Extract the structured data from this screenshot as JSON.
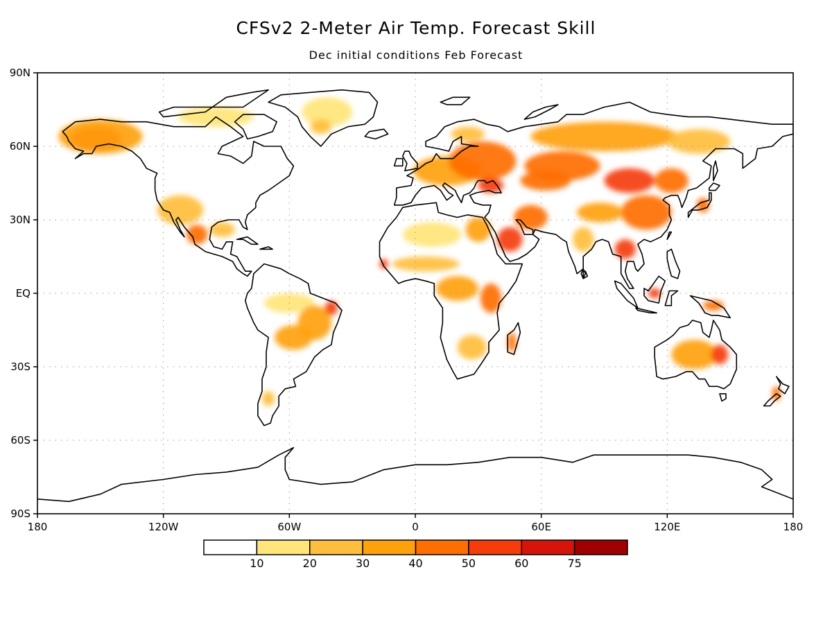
{
  "title": "CFSv2 2-Meter Air Temp. Forecast Skill",
  "subtitle": "Dec initial conditions  Feb Forecast",
  "chart_data": {
    "type": "heatmap",
    "projection": "cylindrical equidistant",
    "lon_range": [
      -180,
      180
    ],
    "lat_range": [
      -90,
      90
    ],
    "grid": true,
    "x_ticks": [
      {
        "lon": -180,
        "label": "180"
      },
      {
        "lon": -120,
        "label": "120W"
      },
      {
        "lon": -60,
        "label": "60W"
      },
      {
        "lon": 0,
        "label": "0"
      },
      {
        "lon": 60,
        "label": "60E"
      },
      {
        "lon": 120,
        "label": "120E"
      },
      {
        "lon": 180,
        "label": "180"
      }
    ],
    "y_ticks": [
      {
        "lat": 90,
        "label": "90N"
      },
      {
        "lat": 60,
        "label": "60N"
      },
      {
        "lat": 30,
        "label": "30N"
      },
      {
        "lat": 0,
        "label": "EQ"
      },
      {
        "lat": -30,
        "label": "30S"
      },
      {
        "lat": -60,
        "label": "60S"
      },
      {
        "lat": -90,
        "label": "90S"
      }
    ],
    "colorbar": {
      "placement": "bottom",
      "bins": [
        {
          "color": "#ffffff",
          "lower": null,
          "upper": 10
        },
        {
          "color": "#ffe57a",
          "lower": 10,
          "upper": 20
        },
        {
          "color": "#ffbe3c",
          "lower": 20,
          "upper": 30
        },
        {
          "color": "#ffa10a",
          "lower": 30,
          "upper": 40
        },
        {
          "color": "#ff6e00",
          "lower": 40,
          "upper": 50
        },
        {
          "color": "#f53c0a",
          "lower": 50,
          "upper": 60
        },
        {
          "color": "#d7140a",
          "lower": 60,
          "upper": 75
        },
        {
          "color": "#a00000",
          "lower": 75,
          "upper": null
        }
      ],
      "labels": [
        "10",
        "20",
        "30",
        "40",
        "50",
        "60",
        "75"
      ]
    },
    "skill_regions": [
      {
        "name": "Alaska",
        "lon": -152,
        "lat": 63,
        "rx": 12,
        "ry": 5,
        "value": 55
      },
      {
        "name": "Alaska outer",
        "lon": -150,
        "lat": 64,
        "rx": 20,
        "ry": 7,
        "value": 35
      },
      {
        "name": "Arctic Canada",
        "lon": -95,
        "lat": 72,
        "rx": 18,
        "ry": 4,
        "value": 15
      },
      {
        "name": "Greenland",
        "lon": -42,
        "lat": 74,
        "rx": 12,
        "ry": 6,
        "value": 15
      },
      {
        "name": "Greenland south",
        "lon": -45,
        "lat": 68,
        "rx": 5,
        "ry": 3,
        "value": 25
      },
      {
        "name": "Southwest US",
        "lon": -112,
        "lat": 34,
        "rx": 11,
        "ry": 6,
        "value": 25
      },
      {
        "name": "Mexico",
        "lon": -104,
        "lat": 24,
        "rx": 5,
        "ry": 4,
        "value": 45
      },
      {
        "name": "Gulf of Mexico",
        "lon": -92,
        "lat": 26,
        "rx": 6,
        "ry": 3,
        "value": 25
      },
      {
        "name": "Amazon",
        "lon": -60,
        "lat": -4,
        "rx": 12,
        "ry": 4,
        "value": 15
      },
      {
        "name": "Brazil",
        "lon": -48,
        "lat": -12,
        "rx": 8,
        "ry": 7,
        "value": 30
      },
      {
        "name": "Central South America",
        "lon": -58,
        "lat": -18,
        "rx": 9,
        "ry": 5,
        "value": 30
      },
      {
        "name": "Northeast Brazil",
        "lon": -40,
        "lat": -6,
        "rx": 3,
        "ry": 3,
        "value": 50
      },
      {
        "name": "Patagonia",
        "lon": -70,
        "lat": -43,
        "rx": 3,
        "ry": 3,
        "value": 20
      },
      {
        "name": "Europe",
        "lon": 15,
        "lat": 50,
        "rx": 16,
        "ry": 6,
        "value": 30
      },
      {
        "name": "Eastern Europe",
        "lon": 32,
        "lat": 54,
        "rx": 16,
        "ry": 8,
        "value": 40
      },
      {
        "name": "Black Sea",
        "lon": 36,
        "lat": 44,
        "rx": 6,
        "ry": 3,
        "value": 55
      },
      {
        "name": "Scandinavia",
        "lon": 25,
        "lat": 65,
        "rx": 8,
        "ry": 3,
        "value": 20
      },
      {
        "name": "Sahara",
        "lon": 8,
        "lat": 24,
        "rx": 14,
        "ry": 5,
        "value": 15
      },
      {
        "name": "Egypt",
        "lon": 30,
        "lat": 26,
        "rx": 6,
        "ry": 5,
        "value": 35
      },
      {
        "name": "Arabia",
        "lon": 45,
        "lat": 22,
        "rx": 6,
        "ry": 5,
        "value": 55
      },
      {
        "name": "Iran",
        "lon": 55,
        "lat": 31,
        "rx": 8,
        "ry": 5,
        "value": 40
      },
      {
        "name": "Sahel",
        "lon": 5,
        "lat": 12,
        "rx": 16,
        "ry": 3,
        "value": 25
      },
      {
        "name": "West Africa coast",
        "lon": -15,
        "lat": 12,
        "rx": 2,
        "ry": 2,
        "value": 50
      },
      {
        "name": "Central Africa",
        "lon": 20,
        "lat": 2,
        "rx": 10,
        "ry": 5,
        "value": 30
      },
      {
        "name": "East Africa",
        "lon": 36,
        "lat": -2,
        "rx": 5,
        "ry": 6,
        "value": 40
      },
      {
        "name": "Southern Africa",
        "lon": 27,
        "lat": -22,
        "rx": 7,
        "ry": 5,
        "value": 25
      },
      {
        "name": "Madagascar",
        "lon": 46,
        "lat": -20,
        "rx": 2,
        "ry": 4,
        "value": 40
      },
      {
        "name": "Siberia",
        "lon": 90,
        "lat": 64,
        "rx": 35,
        "ry": 6,
        "value": 30
      },
      {
        "name": "Central Asia",
        "lon": 70,
        "lat": 52,
        "rx": 18,
        "ry": 6,
        "value": 45
      },
      {
        "name": "Kazakhstan",
        "lon": 62,
        "lat": 46,
        "rx": 12,
        "ry": 4,
        "value": 40
      },
      {
        "name": "Mongolia",
        "lon": 102,
        "lat": 46,
        "rx": 12,
        "ry": 5,
        "value": 50
      },
      {
        "name": "China",
        "lon": 110,
        "lat": 33,
        "rx": 12,
        "ry": 7,
        "value": 45
      },
      {
        "name": "Tibet",
        "lon": 88,
        "lat": 33,
        "rx": 11,
        "ry": 4,
        "value": 35
      },
      {
        "name": "Northeast China",
        "lon": 122,
        "lat": 46,
        "rx": 8,
        "ry": 5,
        "value": 40
      },
      {
        "name": "East Siberia",
        "lon": 135,
        "lat": 62,
        "rx": 15,
        "ry": 5,
        "value": 25
      },
      {
        "name": "India",
        "lon": 80,
        "lat": 22,
        "rx": 5,
        "ry": 5,
        "value": 20
      },
      {
        "name": "Indochina",
        "lon": 100,
        "lat": 18,
        "rx": 5,
        "ry": 4,
        "value": 55
      },
      {
        "name": "Borneo",
        "lon": 114,
        "lat": 0,
        "rx": 3,
        "ry": 2,
        "value": 55
      },
      {
        "name": "New Guinea",
        "lon": 142,
        "lat": -5,
        "rx": 5,
        "ry": 2,
        "value": 45
      },
      {
        "name": "Japan",
        "lon": 137,
        "lat": 36,
        "rx": 3,
        "ry": 3,
        "value": 45
      },
      {
        "name": "Australia",
        "lon": 133,
        "lat": -25,
        "rx": 11,
        "ry": 6,
        "value": 30
      },
      {
        "name": "Eastern Australia",
        "lon": 145,
        "lat": -25,
        "rx": 4,
        "ry": 4,
        "value": 50
      },
      {
        "name": "New Zealand",
        "lon": 172,
        "lat": -41,
        "rx": 2,
        "ry": 3,
        "value": 45
      }
    ]
  }
}
